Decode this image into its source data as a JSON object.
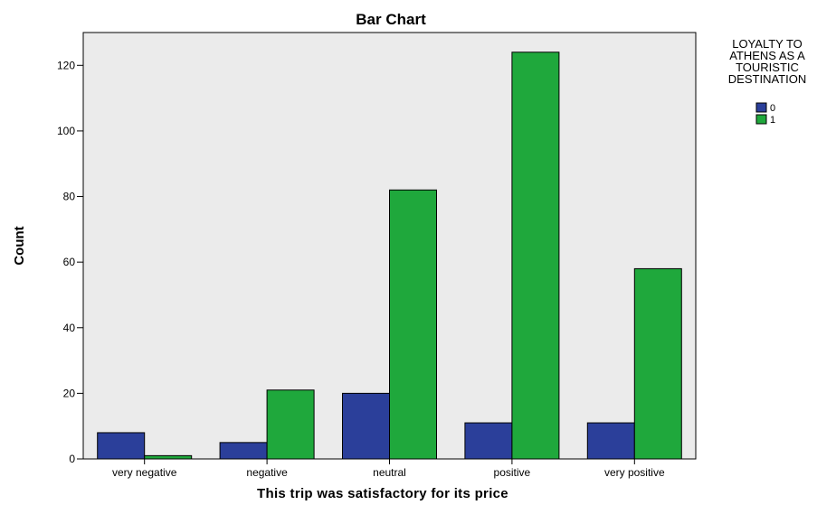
{
  "chart_data": {
    "type": "bar",
    "title": "Bar Chart",
    "xlabel": "This trip was satisfactory for its price",
    "ylabel": "Count",
    "categories": [
      "very negative",
      "negative",
      "neutral",
      "positive",
      "very positive"
    ],
    "series": [
      {
        "name": "0",
        "values": [
          8,
          5,
          20,
          11,
          11
        ],
        "color": "#2b3f9a"
      },
      {
        "name": "1",
        "values": [
          1,
          21,
          82,
          124,
          58
        ],
        "color": "#1fa83c"
      }
    ],
    "ylim": [
      0,
      130
    ],
    "yticks": [
      0,
      20,
      40,
      60,
      80,
      100,
      120
    ],
    "legend": {
      "title_lines": [
        "LOYALTY TO",
        "ATHENS AS A",
        "TOURISTIC",
        "DESTINATION"
      ],
      "placement": "right"
    },
    "grid": false,
    "plot_background": "#ebebeb"
  }
}
